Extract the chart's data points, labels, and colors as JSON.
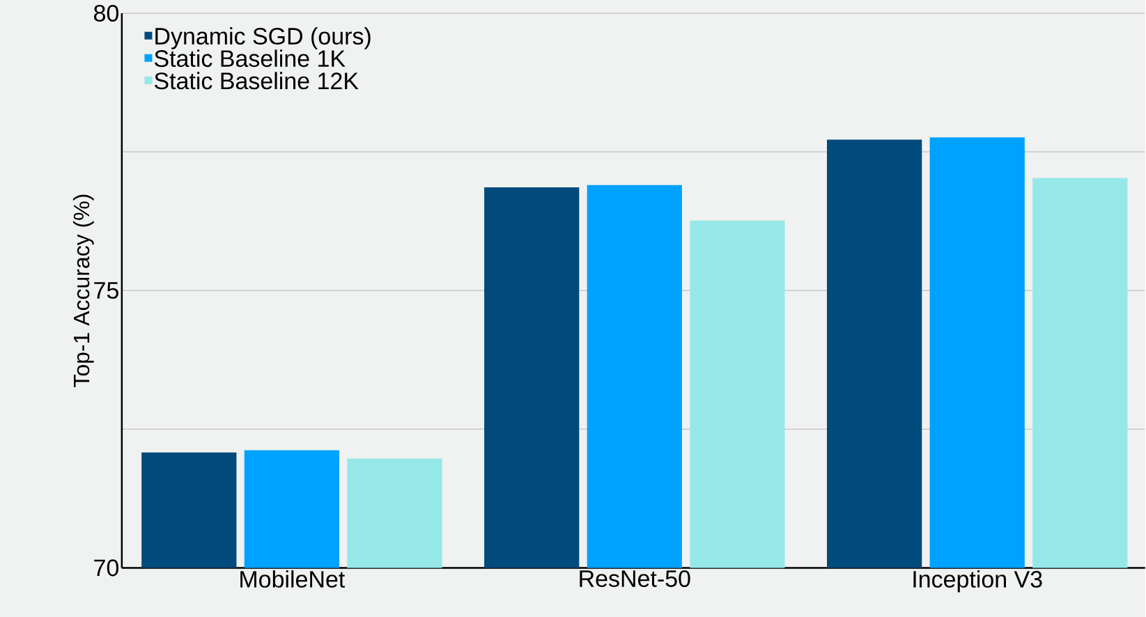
{
  "chart_data": {
    "type": "bar",
    "ylabel": "Top-1 Accuracy (%)",
    "categories": [
      "MobileNet",
      "ResNet-50",
      "Inception V3"
    ],
    "series": [
      {
        "name": "Dynamic SGD (ours)",
        "color": "#004a7c",
        "values": [
          72.08,
          76.86,
          77.72
        ]
      },
      {
        "name": "Static Baseline 1K",
        "color": "#00a2ff",
        "values": [
          72.12,
          76.9,
          77.76
        ]
      },
      {
        "name": "Static Baseline 12K",
        "color": "#96e8e8",
        "values": [
          71.97,
          76.26,
          77.03
        ]
      }
    ],
    "ylim": [
      70,
      80
    ],
    "yticks": [
      70,
      {
        "value": 72.5,
        "label": null
      },
      75,
      {
        "value": 77.5,
        "label": null
      },
      80
    ],
    "grid": "y",
    "legend": "top left"
  }
}
